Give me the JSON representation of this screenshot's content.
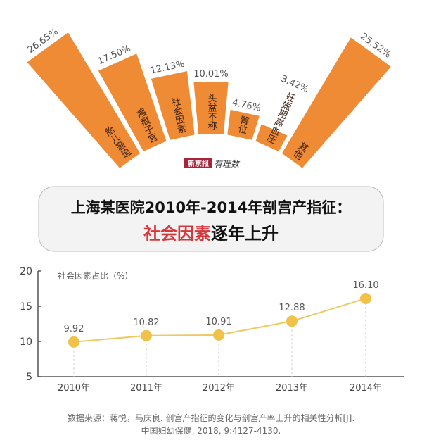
{
  "logo": {
    "left": "新京报",
    "right": "有理数"
  },
  "fan_chart": {
    "type": "bar",
    "categories": [
      "胎儿窘迫",
      "瘢痕子宫",
      "社会因素",
      "头盆不称",
      "臀位",
      "妊娠期高血压",
      "其他"
    ],
    "values": [
      26.65,
      17.5,
      12.13,
      10.01,
      4.76,
      3.42,
      25.52
    ],
    "labels": [
      "26.65%",
      "17.50%",
      "12.13%",
      "10.01%",
      "4.76%",
      "3.42%",
      "25.52%"
    ],
    "color": "#ef8a35"
  },
  "title": {
    "line1": "上海某医院2010年-2014年剖宫产指征：",
    "line2_highlight": "社会因素",
    "line2_rest": "逐年上升",
    "highlight_color": "#d9363b"
  },
  "chart_data": {
    "type": "line",
    "ylabel": "社会因素占比（%）",
    "categories": [
      "2010年",
      "2011年",
      "2012年",
      "2013年",
      "2014年"
    ],
    "values": [
      9.92,
      10.82,
      10.91,
      12.88,
      16.1
    ],
    "data_labels": [
      "9.92",
      "10.82",
      "10.91",
      "12.88",
      "16.10"
    ],
    "ylim": [
      5,
      20
    ],
    "yticks": [
      "5",
      "10",
      "15",
      "20"
    ],
    "grid": false,
    "color": "#f0c24a"
  },
  "source": {
    "line1": "数据来源：蒋悦，马庆良. 剖宫产指征的变化与剖宫产率上升的相关性分析[J].",
    "line2": "中国妇幼保健, 2018, 9:4127-4130."
  }
}
